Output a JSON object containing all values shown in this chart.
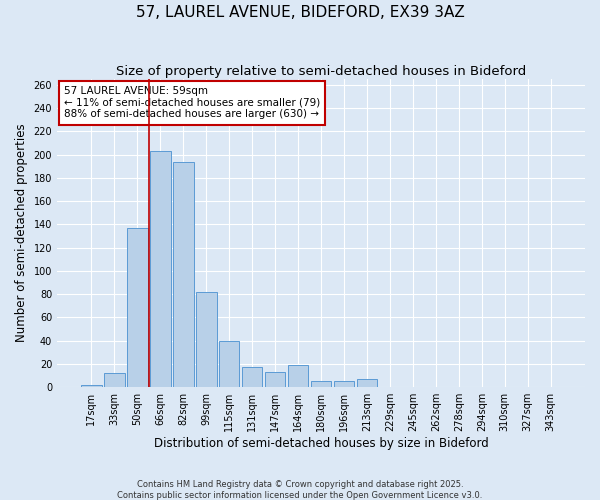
{
  "title1": "57, LAUREL AVENUE, BIDEFORD, EX39 3AZ",
  "title2": "Size of property relative to semi-detached houses in Bideford",
  "xlabel": "Distribution of semi-detached houses by size in Bideford",
  "ylabel": "Number of semi-detached properties",
  "categories": [
    "17sqm",
    "33sqm",
    "50sqm",
    "66sqm",
    "82sqm",
    "99sqm",
    "115sqm",
    "131sqm",
    "147sqm",
    "164sqm",
    "180sqm",
    "196sqm",
    "213sqm",
    "229sqm",
    "245sqm",
    "262sqm",
    "278sqm",
    "294sqm",
    "310sqm",
    "327sqm",
    "343sqm"
  ],
  "values": [
    2,
    12,
    137,
    203,
    194,
    82,
    40,
    17,
    13,
    19,
    5,
    5,
    7,
    0,
    0,
    0,
    0,
    0,
    0,
    0,
    0
  ],
  "bar_color": "#b8d0e8",
  "bar_edge_color": "#5b9bd5",
  "vline_x_index": 2.5,
  "vline_color": "#c00000",
  "annotation_text": "57 LAUREL AVENUE: 59sqm\n← 11% of semi-detached houses are smaller (79)\n88% of semi-detached houses are larger (630) →",
  "annotation_box_color": "#ffffff",
  "annotation_box_edge": "#c00000",
  "ylim": [
    0,
    265
  ],
  "yticks": [
    0,
    20,
    40,
    60,
    80,
    100,
    120,
    140,
    160,
    180,
    200,
    220,
    240,
    260
  ],
  "background_color": "#dce8f5",
  "fig_background_color": "#dce8f5",
  "footer1": "Contains HM Land Registry data © Crown copyright and database right 2025.",
  "footer2": "Contains public sector information licensed under the Open Government Licence v3.0.",
  "title_fontsize": 11,
  "subtitle_fontsize": 9.5,
  "axis_label_fontsize": 8.5,
  "tick_fontsize": 7,
  "ylabel_text": "Number of semi-detached properties"
}
